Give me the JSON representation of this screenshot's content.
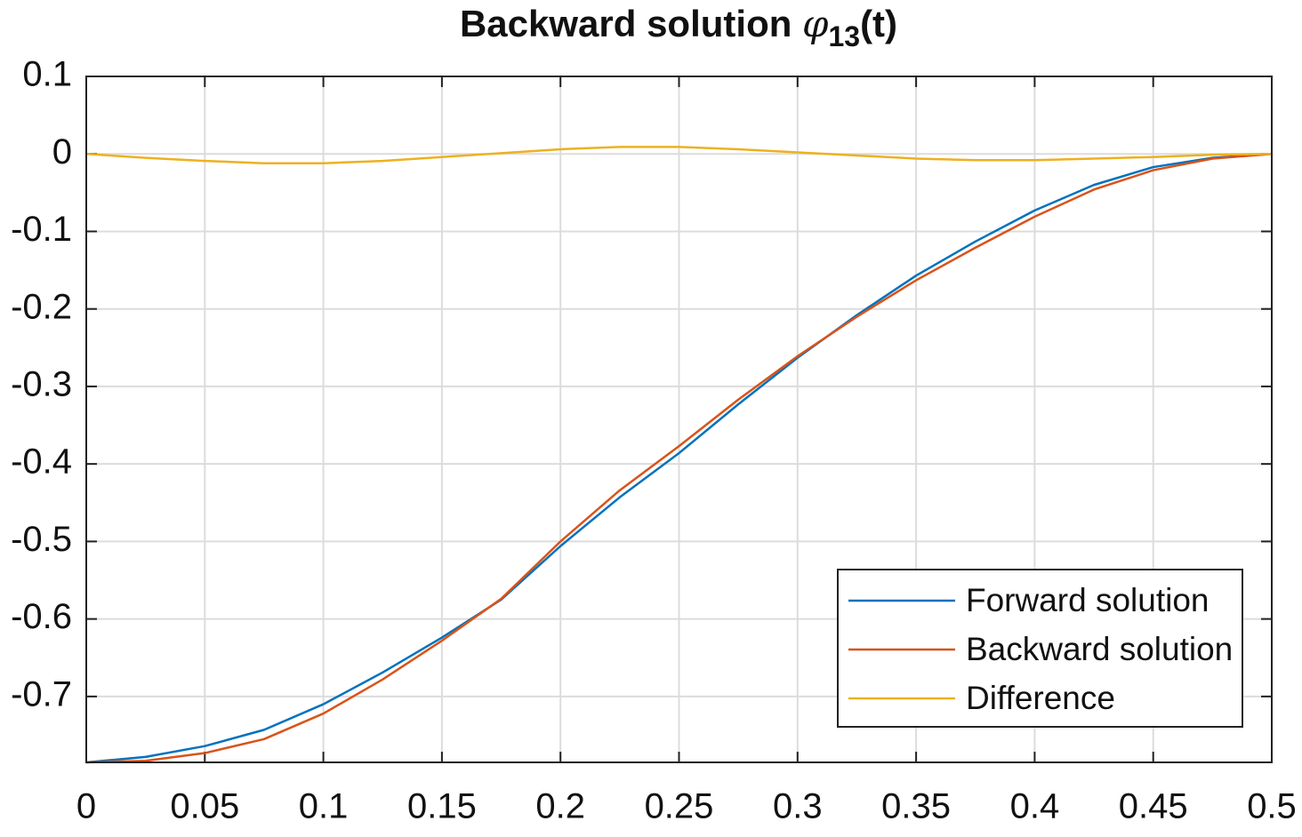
{
  "chart_data": {
    "type": "line",
    "title": "Backward solution ",
    "title_symbol": "φ",
    "title_subscript": "13",
    "title_suffix": "(t)",
    "x": [
      0,
      0.025,
      0.05,
      0.075,
      0.1,
      0.125,
      0.15,
      0.175,
      0.2,
      0.225,
      0.25,
      0.275,
      0.3,
      0.325,
      0.35,
      0.375,
      0.4,
      0.425,
      0.45,
      0.475,
      0.5
    ],
    "series": [
      {
        "name": "Forward solution",
        "color": "#0072bd",
        "values": [
          -0.785,
          -0.778,
          -0.764,
          -0.743,
          -0.71,
          -0.669,
          -0.624,
          -0.575,
          -0.506,
          -0.443,
          -0.386,
          -0.323,
          -0.263,
          -0.208,
          -0.157,
          -0.113,
          -0.073,
          -0.04,
          -0.017,
          -0.005,
          0
        ]
      },
      {
        "name": "Backward solution",
        "color": "#d95319",
        "values": [
          -0.785,
          -0.783,
          -0.773,
          -0.755,
          -0.722,
          -0.678,
          -0.628,
          -0.574,
          -0.5,
          -0.434,
          -0.377,
          -0.317,
          -0.261,
          -0.21,
          -0.163,
          -0.121,
          -0.081,
          -0.046,
          -0.021,
          -0.006,
          0
        ]
      },
      {
        "name": "Difference",
        "color": "#edb120",
        "values": [
          0,
          -0.005,
          -0.009,
          -0.012,
          -0.012,
          -0.009,
          -0.004,
          0.001,
          0.006,
          0.009,
          0.009,
          0.006,
          0.002,
          -0.002,
          -0.006,
          -0.008,
          -0.008,
          -0.006,
          -0.004,
          -0.001,
          0
        ]
      }
    ],
    "xlim": [
      0,
      0.5
    ],
    "xticks": [
      0,
      0.05,
      0.1,
      0.15,
      0.2,
      0.25,
      0.3,
      0.35,
      0.4,
      0.45,
      0.5
    ],
    "ylim": [
      -0.785,
      0.1
    ],
    "yticks": [
      0.1,
      0,
      -0.1,
      -0.2,
      -0.3,
      -0.4,
      -0.5,
      -0.6,
      -0.7
    ],
    "grid": true,
    "legend": "southeast"
  }
}
